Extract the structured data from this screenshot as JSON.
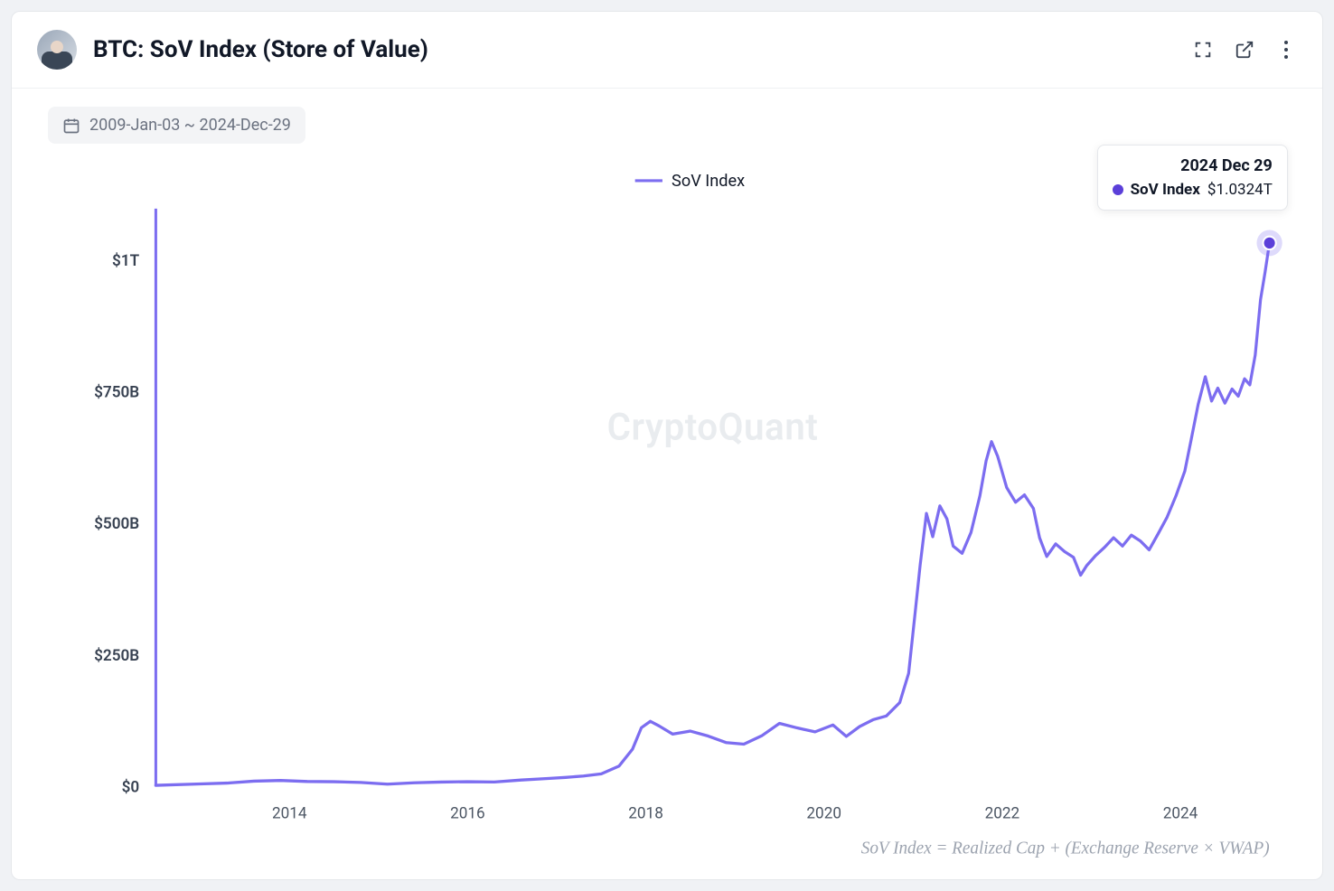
{
  "header": {
    "title": "BTC: SoV Index (Store of Value)"
  },
  "toolbar": {
    "date_range": "2009-Jan-03 ~ 2024-Dec-29"
  },
  "legend": {
    "series_name": "SoV Index",
    "color": "#7c6df0"
  },
  "tooltip": {
    "date": "2024 Dec 29",
    "series_label": "SoV Index",
    "value": "$1.0324T",
    "marker_color": "#5b3fd9"
  },
  "watermark": "CryptoQuant",
  "formula": "SoV Index = Realized Cap + (Exchange Reserve × VWAP)",
  "chart": {
    "type": "line",
    "background_color": "#ffffff",
    "line_color": "#7c6df0",
    "line_width": 3.2,
    "axis_line_color": "#7c6df0",
    "axis_text_color": "#374151",
    "y_axis": {
      "ticks": [
        {
          "value_billion": 0,
          "label": "$0"
        },
        {
          "value_billion": 250,
          "label": "$250B"
        },
        {
          "value_billion": 500,
          "label": "$500B"
        },
        {
          "value_billion": 750,
          "label": "$750B"
        },
        {
          "value_billion": 1000,
          "label": "$1T"
        }
      ],
      "min_billion": 0,
      "max_billion": 1080
    },
    "x_axis": {
      "start_year": 2012.5,
      "end_year": 2025.0,
      "tick_years": [
        2014,
        2016,
        2018,
        2020,
        2022,
        2024
      ]
    },
    "highlight_point": {
      "year": 2025.0,
      "value_billion": 1032.4,
      "halo_color": "rgba(124,109,240,0.25)",
      "dot_color": "#5b3fd9"
    },
    "series": [
      {
        "year": 2012.5,
        "v": 2
      },
      {
        "year": 2013.0,
        "v": 3
      },
      {
        "year": 2013.3,
        "v": 5
      },
      {
        "year": 2013.6,
        "v": 8
      },
      {
        "year": 2013.9,
        "v": 10
      },
      {
        "year": 2014.2,
        "v": 9
      },
      {
        "year": 2014.5,
        "v": 8
      },
      {
        "year": 2014.8,
        "v": 7
      },
      {
        "year": 2015.1,
        "v": 6
      },
      {
        "year": 2015.4,
        "v": 6
      },
      {
        "year": 2015.7,
        "v": 7
      },
      {
        "year": 2016.0,
        "v": 8
      },
      {
        "year": 2016.3,
        "v": 9
      },
      {
        "year": 2016.6,
        "v": 11
      },
      {
        "year": 2016.9,
        "v": 13
      },
      {
        "year": 2017.1,
        "v": 15
      },
      {
        "year": 2017.3,
        "v": 18
      },
      {
        "year": 2017.5,
        "v": 25
      },
      {
        "year": 2017.7,
        "v": 40
      },
      {
        "year": 2017.85,
        "v": 70
      },
      {
        "year": 2017.95,
        "v": 110
      },
      {
        "year": 2018.05,
        "v": 125
      },
      {
        "year": 2018.15,
        "v": 115
      },
      {
        "year": 2018.3,
        "v": 100
      },
      {
        "year": 2018.5,
        "v": 105
      },
      {
        "year": 2018.7,
        "v": 95
      },
      {
        "year": 2018.9,
        "v": 85
      },
      {
        "year": 2019.1,
        "v": 80
      },
      {
        "year": 2019.3,
        "v": 95
      },
      {
        "year": 2019.5,
        "v": 120
      },
      {
        "year": 2019.7,
        "v": 110
      },
      {
        "year": 2019.9,
        "v": 105
      },
      {
        "year": 2020.1,
        "v": 115
      },
      {
        "year": 2020.25,
        "v": 95
      },
      {
        "year": 2020.4,
        "v": 115
      },
      {
        "year": 2020.55,
        "v": 125
      },
      {
        "year": 2020.7,
        "v": 135
      },
      {
        "year": 2020.85,
        "v": 160
      },
      {
        "year": 2020.95,
        "v": 210
      },
      {
        "year": 2021.02,
        "v": 330
      },
      {
        "year": 2021.08,
        "v": 430
      },
      {
        "year": 2021.15,
        "v": 510
      },
      {
        "year": 2021.22,
        "v": 480
      },
      {
        "year": 2021.3,
        "v": 530
      },
      {
        "year": 2021.38,
        "v": 500
      },
      {
        "year": 2021.45,
        "v": 460
      },
      {
        "year": 2021.55,
        "v": 440
      },
      {
        "year": 2021.65,
        "v": 490
      },
      {
        "year": 2021.75,
        "v": 560
      },
      {
        "year": 2021.82,
        "v": 620
      },
      {
        "year": 2021.88,
        "v": 650
      },
      {
        "year": 2021.95,
        "v": 620
      },
      {
        "year": 2022.05,
        "v": 570
      },
      {
        "year": 2022.15,
        "v": 540
      },
      {
        "year": 2022.25,
        "v": 560
      },
      {
        "year": 2022.35,
        "v": 520
      },
      {
        "year": 2022.42,
        "v": 470
      },
      {
        "year": 2022.5,
        "v": 440
      },
      {
        "year": 2022.6,
        "v": 460
      },
      {
        "year": 2022.7,
        "v": 445
      },
      {
        "year": 2022.8,
        "v": 430
      },
      {
        "year": 2022.88,
        "v": 400
      },
      {
        "year": 2022.95,
        "v": 415
      },
      {
        "year": 2023.05,
        "v": 430
      },
      {
        "year": 2023.15,
        "v": 455
      },
      {
        "year": 2023.25,
        "v": 470
      },
      {
        "year": 2023.35,
        "v": 460
      },
      {
        "year": 2023.45,
        "v": 475
      },
      {
        "year": 2023.55,
        "v": 465
      },
      {
        "year": 2023.65,
        "v": 455
      },
      {
        "year": 2023.75,
        "v": 480
      },
      {
        "year": 2023.85,
        "v": 520
      },
      {
        "year": 2023.95,
        "v": 560
      },
      {
        "year": 2024.05,
        "v": 600
      },
      {
        "year": 2024.12,
        "v": 660
      },
      {
        "year": 2024.2,
        "v": 730
      },
      {
        "year": 2024.28,
        "v": 770
      },
      {
        "year": 2024.35,
        "v": 740
      },
      {
        "year": 2024.42,
        "v": 760
      },
      {
        "year": 2024.5,
        "v": 730
      },
      {
        "year": 2024.58,
        "v": 755
      },
      {
        "year": 2024.65,
        "v": 740
      },
      {
        "year": 2024.72,
        "v": 780
      },
      {
        "year": 2024.78,
        "v": 770
      },
      {
        "year": 2024.84,
        "v": 820
      },
      {
        "year": 2024.9,
        "v": 920
      },
      {
        "year": 2024.95,
        "v": 980
      },
      {
        "year": 2025.0,
        "v": 1032.4
      }
    ]
  }
}
